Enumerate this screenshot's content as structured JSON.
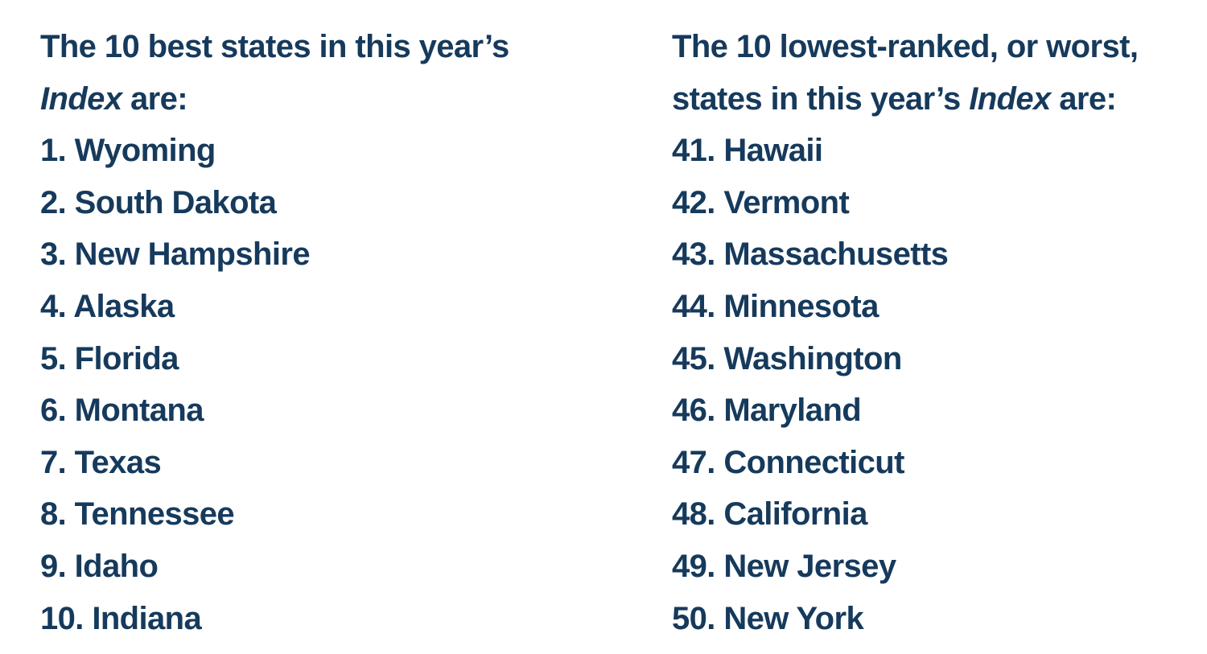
{
  "best": {
    "heading": {
      "line1": "The 10 best states in this year’s",
      "line2_italic": "Index",
      "line2_rest": " are:"
    },
    "items": [
      "1. Wyoming",
      "2. South Dakota",
      "3. New Hampshire",
      "4. Alaska",
      "5. Florida",
      "6. Montana",
      "7. Texas",
      "8. Tennessee",
      "9. Idaho",
      "10. Indiana"
    ]
  },
  "worst": {
    "heading": {
      "line1": "The 10 lowest-ranked, or worst,",
      "line2_pre": "states in this year’s ",
      "line2_italic": "Index",
      "line2_rest": " are:"
    },
    "items": [
      "41. Hawaii",
      "42. Vermont",
      "43. Massachusetts",
      "44. Minnesota",
      "45. Washington",
      "46. Maryland",
      "47. Connecticut",
      "48. California",
      "49. New Jersey",
      "50. New York"
    ]
  },
  "colors": {
    "text": "#163a5c",
    "background": "#ffffff"
  }
}
